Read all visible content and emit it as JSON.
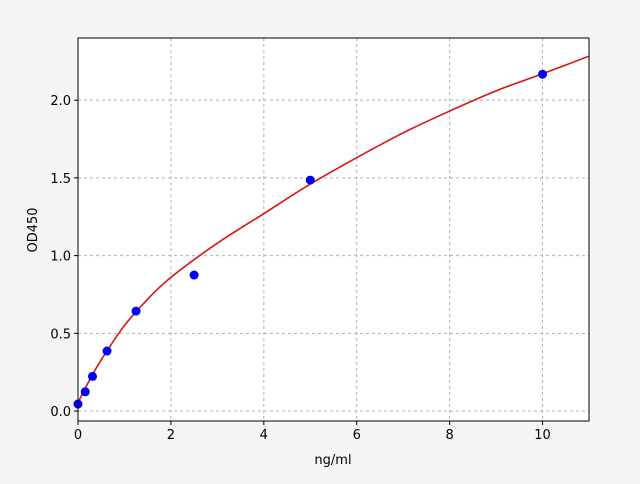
{
  "chart_data": {
    "type": "scatter",
    "title": "",
    "xlabel": "ng/ml",
    "ylabel": "OD450",
    "xlim": [
      0,
      11
    ],
    "ylim": [
      -0.064,
      2.4
    ],
    "xticks": [
      0,
      2,
      4,
      6,
      8,
      10
    ],
    "xtick_labels": [
      "0",
      "2",
      "4",
      "6",
      "8",
      "10"
    ],
    "yticks": [
      0.0,
      0.5,
      1.0,
      1.5,
      2.0
    ],
    "ytick_labels": [
      "0.0",
      "0.5",
      "1.0",
      "1.5",
      "2.0"
    ],
    "grid": true,
    "points": {
      "x": [
        0,
        0.156,
        0.3125,
        0.625,
        1.25,
        2.5,
        5,
        10
      ],
      "y": [
        0.045,
        0.124,
        0.223,
        0.386,
        0.643,
        0.875,
        1.486,
        2.167
      ],
      "color": "#0000ff"
    },
    "fit_curve": {
      "x": [
        0,
        0.25,
        0.5,
        1,
        1.5,
        2,
        3,
        4,
        5,
        6,
        7,
        8,
        9,
        10,
        11
      ],
      "y": [
        0.055,
        0.2,
        0.33,
        0.55,
        0.72,
        0.86,
        1.08,
        1.27,
        1.46,
        1.63,
        1.79,
        1.93,
        2.06,
        2.17,
        2.283
      ],
      "color": "#dd1111"
    }
  }
}
